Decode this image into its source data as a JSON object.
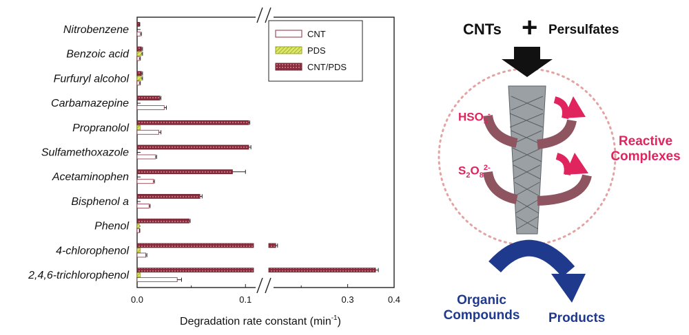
{
  "chart_data": {
    "type": "bar",
    "orientation": "horizontal",
    "xlabel_main": "Degradation rate constant (min",
    "xlabel_sup": "-1",
    "xlabel_close": ")",
    "xticks": [
      "0.0",
      "0.1",
      "0.3",
      "0.4"
    ],
    "axis_break": {
      "from": 0.11,
      "to": 0.13,
      "unit_note": "broken axis: 0–0.11 left segment, 0.13–0.4 right segment"
    },
    "categories": [
      "Nitrobenzene",
      "Benzoic acid",
      "Furfuryl alcohol",
      "Carbamazepine",
      "Propranolol",
      "Sulfamethoxazole",
      "Acetaminophen",
      "Bisphenol a",
      "Phenol",
      "4-chlorophenol",
      "2,4,6-trichlorophenol"
    ],
    "series": [
      {
        "name": "CNT",
        "values": [
          0.003,
          0.002,
          0.002,
          0.025,
          0.02,
          0.017,
          0.015,
          0.011,
          0.002,
          0.008,
          0.037
        ],
        "errors": [
          0.001,
          0.001,
          0.001,
          0.002,
          0.002,
          0.001,
          0.001,
          0.001,
          0.0005,
          0.001,
          0.004
        ]
      },
      {
        "name": "PDS",
        "values": [
          0.0,
          0.004,
          0.004,
          0.0,
          0.003,
          0.0,
          0.0,
          0.0,
          0.002,
          0.003,
          0.003
        ],
        "errors": [
          0,
          0.001,
          0.001,
          0,
          0,
          0,
          0,
          0,
          0,
          0,
          0
        ]
      },
      {
        "name": "CNT/PDS",
        "values": [
          0.002,
          0.004,
          0.004,
          0.021,
          0.103,
          0.103,
          0.088,
          0.058,
          0.048,
          0.145,
          0.36
        ],
        "errors": [
          0.0005,
          0.001,
          0.001,
          0.001,
          0.001,
          0.002,
          0.012,
          0.002,
          0.001,
          0.004,
          0.006
        ]
      }
    ],
    "legend": [
      "CNT",
      "PDS",
      "CNT/PDS"
    ],
    "legend_position": "top-right"
  },
  "diagram": {
    "cnts": "CNTs",
    "plus": "+",
    "persulfates": "Persulfates",
    "hso5": "HSO",
    "hso5_sub": "5",
    "hso5_sup": "-",
    "s2o8_s": "S",
    "s2o8_sub1": "2",
    "s2o8_o": "O",
    "s2o8_sub2": "8",
    "s2o8_sup": "2-",
    "reactive": "Reactive",
    "complexes": "Complexes",
    "organic": "Organic",
    "compounds": "Compounds",
    "products": "Products",
    "colors": {
      "pink": "#e0245e",
      "blue": "#1f3a8c",
      "maroon": "#8b2a3a",
      "yellow": "#c9d631"
    }
  }
}
